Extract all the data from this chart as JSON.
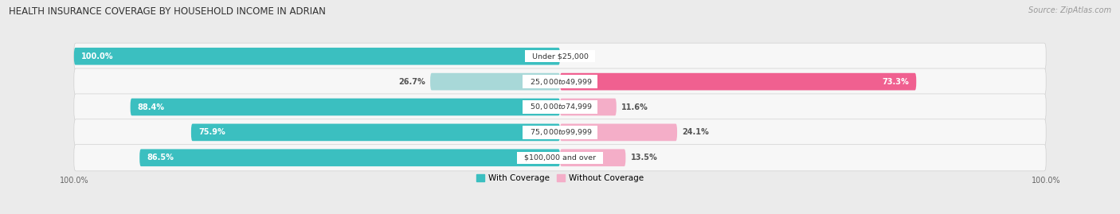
{
  "title": "HEALTH INSURANCE COVERAGE BY HOUSEHOLD INCOME IN ADRIAN",
  "source": "Source: ZipAtlas.com",
  "categories": [
    "Under $25,000",
    "$25,000 to $49,999",
    "$50,000 to $74,999",
    "$75,000 to $99,999",
    "$100,000 and over"
  ],
  "with_coverage": [
    100.0,
    26.7,
    88.4,
    75.9,
    86.5
  ],
  "without_coverage": [
    0.0,
    73.3,
    11.6,
    24.1,
    13.5
  ],
  "color_with_dark": "#3bbfc0",
  "color_with_light": "#a8d8d8",
  "color_without_dark": "#f06090",
  "color_without_light": "#f4aec8",
  "bg_color": "#ebebeb",
  "row_bg": "#f7f7f7",
  "title_fontsize": 8.5,
  "label_fontsize": 7.0,
  "tick_fontsize": 7.0,
  "legend_fontsize": 7.5,
  "source_fontsize": 7.0
}
